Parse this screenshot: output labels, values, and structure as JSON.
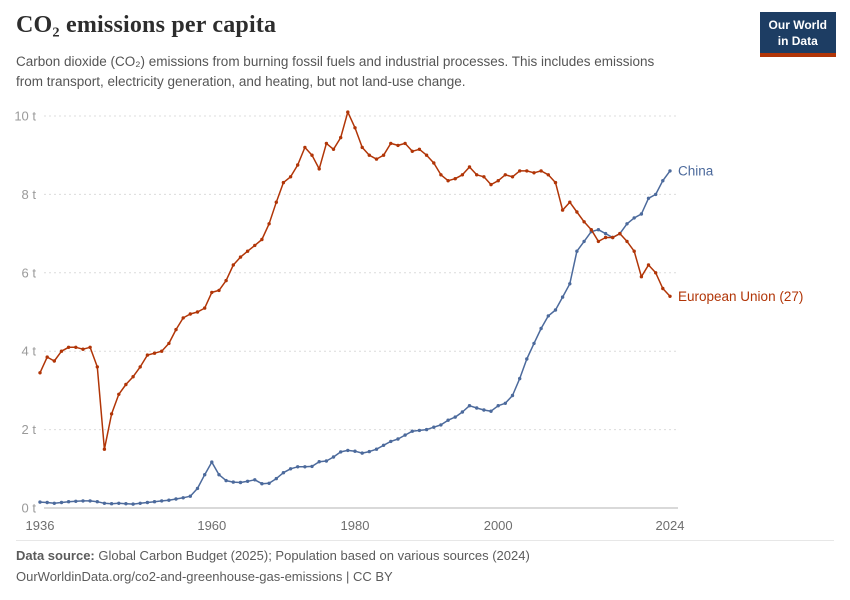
{
  "header": {
    "title": "CO₂ emissions per capita",
    "subtitle_lines": [
      "Carbon dioxide (CO₂) emissions from burning fossil fuels and industrial processes. This includes emissions",
      "from transport, electricity generation, and heating, but not land-use change."
    ],
    "logo": {
      "line1": "Our World",
      "line2": "in Data",
      "bg_color": "#1d3d63",
      "accent_color": "#b13507"
    }
  },
  "chart_data": {
    "type": "line",
    "title": "CO₂ emissions per capita",
    "unit": "t",
    "xlabel": "",
    "ylabel": "",
    "ylim": [
      0,
      10
    ],
    "yticks": [
      0,
      2,
      4,
      6,
      8,
      10
    ],
    "ytick_labels": [
      "0 t",
      "2 t",
      "4 t",
      "6 t",
      "8 t",
      "10 t"
    ],
    "xticks": [
      1936,
      1960,
      1980,
      2000,
      2024
    ],
    "grid": "dotted-horizontal",
    "legend_position": "end-of-line-labels",
    "x": [
      1936,
      1937,
      1938,
      1939,
      1940,
      1941,
      1942,
      1943,
      1944,
      1945,
      1946,
      1947,
      1948,
      1949,
      1950,
      1951,
      1952,
      1953,
      1954,
      1955,
      1956,
      1957,
      1958,
      1959,
      1960,
      1961,
      1962,
      1963,
      1964,
      1965,
      1966,
      1967,
      1968,
      1969,
      1970,
      1971,
      1972,
      1973,
      1974,
      1975,
      1976,
      1977,
      1978,
      1979,
      1980,
      1981,
      1982,
      1983,
      1984,
      1985,
      1986,
      1987,
      1988,
      1989,
      1990,
      1991,
      1992,
      1993,
      1994,
      1995,
      1996,
      1997,
      1998,
      1999,
      2000,
      2001,
      2002,
      2003,
      2004,
      2005,
      2006,
      2007,
      2008,
      2009,
      2010,
      2011,
      2012,
      2013,
      2014,
      2015,
      2016,
      2017,
      2018,
      2019,
      2020,
      2021,
      2022,
      2023,
      2024
    ],
    "series": [
      {
        "name": "China",
        "color": "#4C6A9C",
        "values": [
          0.15,
          0.14,
          0.12,
          0.14,
          0.16,
          0.17,
          0.18,
          0.18,
          0.16,
          0.12,
          0.11,
          0.12,
          0.11,
          0.1,
          0.12,
          0.14,
          0.16,
          0.18,
          0.2,
          0.23,
          0.26,
          0.3,
          0.5,
          0.85,
          1.17,
          0.85,
          0.7,
          0.66,
          0.65,
          0.68,
          0.72,
          0.62,
          0.63,
          0.75,
          0.9,
          1.0,
          1.05,
          1.05,
          1.06,
          1.18,
          1.2,
          1.3,
          1.43,
          1.47,
          1.45,
          1.4,
          1.44,
          1.5,
          1.6,
          1.7,
          1.76,
          1.86,
          1.96,
          1.98,
          2.0,
          2.06,
          2.12,
          2.24,
          2.32,
          2.45,
          2.61,
          2.55,
          2.5,
          2.47,
          2.61,
          2.67,
          2.87,
          3.3,
          3.8,
          4.2,
          4.58,
          4.9,
          5.05,
          5.38,
          5.72,
          6.55,
          6.8,
          7.05,
          7.1,
          7.0,
          6.9,
          7.0,
          7.25,
          7.4,
          7.5,
          7.9,
          8.0,
          8.35,
          8.6
        ]
      },
      {
        "name": "European Union (27)",
        "color": "#B13507",
        "values": [
          3.45,
          3.85,
          3.75,
          4.0,
          4.1,
          4.1,
          4.05,
          4.1,
          3.6,
          1.5,
          2.4,
          2.9,
          3.15,
          3.35,
          3.6,
          3.9,
          3.95,
          4.0,
          4.2,
          4.55,
          4.85,
          4.95,
          5.0,
          5.1,
          5.5,
          5.55,
          5.8,
          6.2,
          6.4,
          6.55,
          6.7,
          6.85,
          7.25,
          7.8,
          8.3,
          8.45,
          8.75,
          9.2,
          9.0,
          8.65,
          9.3,
          9.15,
          9.45,
          10.1,
          9.7,
          9.2,
          9.0,
          8.9,
          9.0,
          9.3,
          9.25,
          9.3,
          9.1,
          9.15,
          9.0,
          8.8,
          8.5,
          8.35,
          8.4,
          8.5,
          8.7,
          8.5,
          8.45,
          8.25,
          8.35,
          8.5,
          8.45,
          8.6,
          8.6,
          8.55,
          8.6,
          8.5,
          8.3,
          7.6,
          7.8,
          7.55,
          7.3,
          7.1,
          6.8,
          6.9,
          6.9,
          7.0,
          6.8,
          6.55,
          5.9,
          6.2,
          6.0,
          5.6,
          5.4
        ]
      }
    ]
  },
  "footer": {
    "source_label": "Data source:",
    "source_text": " Global Carbon Budget (2025); Population based on various sources (2024)",
    "citation": "OurWorldinData.org/co2-and-greenhouse-gas-emissions | CC BY"
  }
}
